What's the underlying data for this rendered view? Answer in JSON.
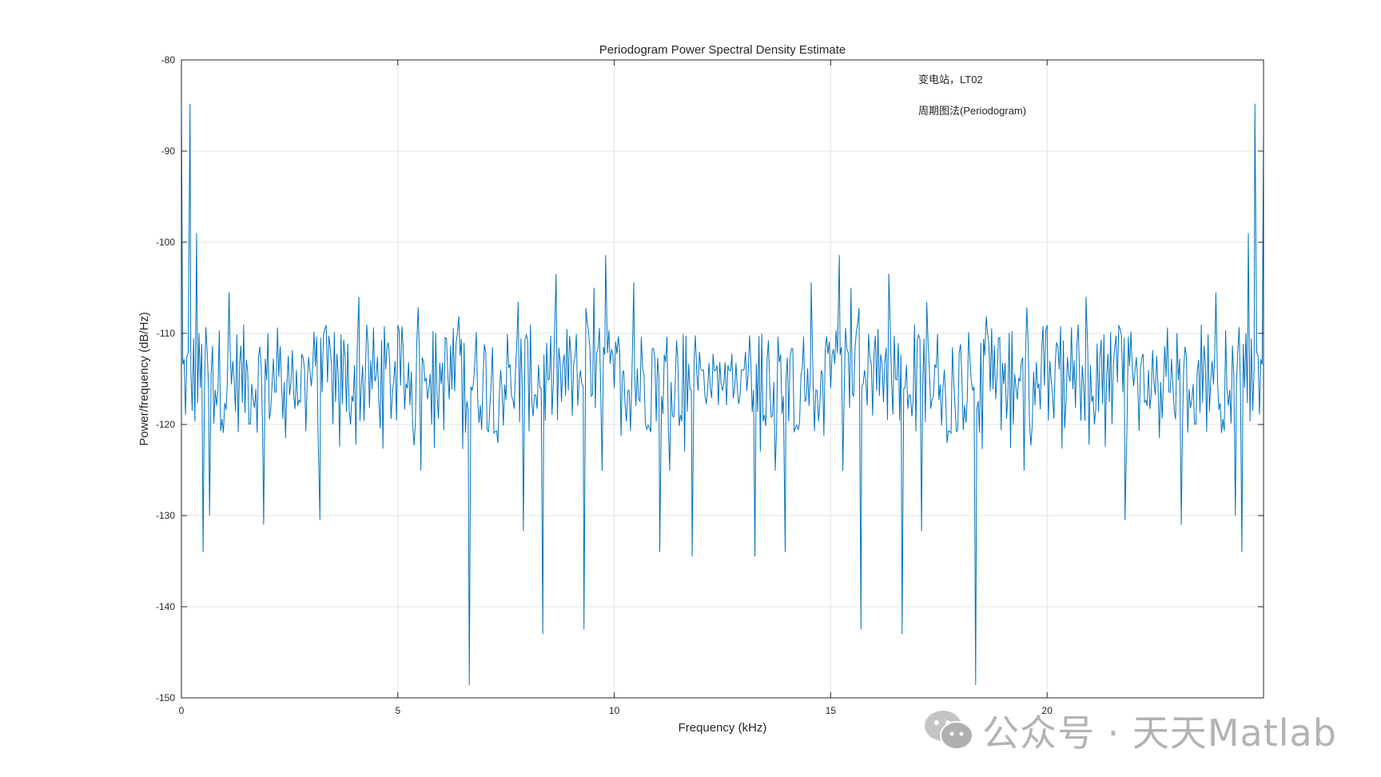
{
  "chart_data": {
    "type": "line",
    "title": "Periodogram Power Spectral Density Estimate",
    "xlabel": "Frequency (kHz)",
    "ylabel": "Power/frequency (dB/Hz)",
    "xlim": [
      0,
      25
    ],
    "ylim": [
      -150,
      -80
    ],
    "xticks": [
      0,
      5,
      10,
      15,
      20
    ],
    "yticks": [
      -150,
      -140,
      -130,
      -120,
      -110,
      -100,
      -90,
      -80
    ],
    "grid": true,
    "series_color": "#0072bd",
    "annotations": [
      "变电站，LT02",
      "周期图法(Periodogram)"
    ],
    "peaks": [
      {
        "x": 0.0,
        "y": -84.8
      },
      {
        "x": 0.2,
        "y": -84.8
      },
      {
        "x": 0.35,
        "y": -99
      },
      {
        "x": 0.5,
        "y": -134
      },
      {
        "x": 0.65,
        "y": -130
      },
      {
        "x": 1.1,
        "y": -105.5
      },
      {
        "x": 1.9,
        "y": -131
      },
      {
        "x": 3.2,
        "y": -130.5
      },
      {
        "x": 4.1,
        "y": -106
      },
      {
        "x": 6.65,
        "y": -148.6
      },
      {
        "x": 7.9,
        "y": -131.7
      },
      {
        "x": 8.35,
        "y": -143
      },
      {
        "x": 9.3,
        "y": -142.5
      },
      {
        "x": 9.8,
        "y": -101.4
      },
      {
        "x": 10.45,
        "y": -104.4
      },
      {
        "x": 11.05,
        "y": -134
      },
      {
        "x": 11.8,
        "y": -134.5
      },
      {
        "x": 13.25,
        "y": -134.5
      },
      {
        "x": 13.95,
        "y": -134
      },
      {
        "x": 14.55,
        "y": -104.4
      },
      {
        "x": 15.2,
        "y": -101.4
      },
      {
        "x": 15.7,
        "y": -142.5
      },
      {
        "x": 16.65,
        "y": -143
      },
      {
        "x": 17.1,
        "y": -131.7
      },
      {
        "x": 18.35,
        "y": -148.6
      },
      {
        "x": 20.9,
        "y": -106
      },
      {
        "x": 21.8,
        "y": -130.5
      },
      {
        "x": 23.1,
        "y": -131
      },
      {
        "x": 23.9,
        "y": -105.5
      },
      {
        "x": 24.35,
        "y": -130
      },
      {
        "x": 24.5,
        "y": -134
      },
      {
        "x": 24.65,
        "y": -99
      },
      {
        "x": 24.8,
        "y": -84.8
      },
      {
        "x": 25.0,
        "y": -88
      }
    ],
    "baseline_mean": -115,
    "mid_quiet_band": [
      12.0,
      13.0
    ]
  },
  "watermark": {
    "text": "公众号 · 天天Matlab",
    "icon": "wechat-icon"
  }
}
